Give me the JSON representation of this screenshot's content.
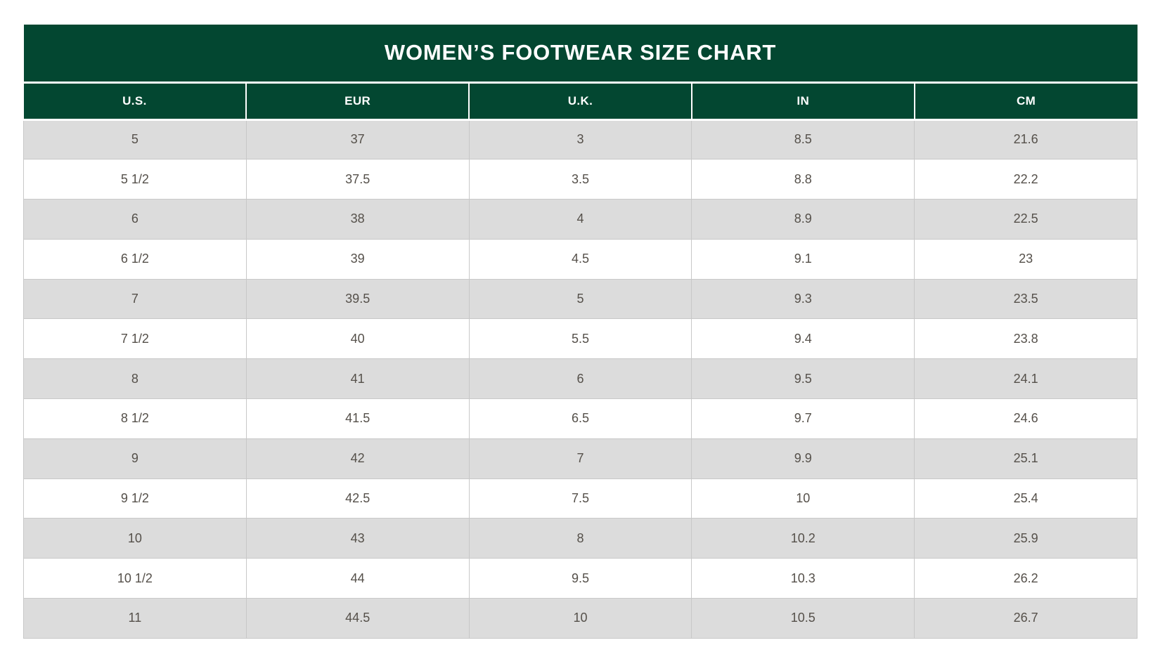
{
  "chart_data": {
    "type": "table",
    "title": "WOMEN’S FOOTWEAR SIZE CHART",
    "columns": [
      "U.S.",
      "EUR",
      "U.K.",
      "IN",
      "CM"
    ],
    "rows": [
      [
        "5",
        "37",
        "3",
        "8.5",
        "21.6"
      ],
      [
        "5 1/2",
        "37.5",
        "3.5",
        "8.8",
        "22.2"
      ],
      [
        "6",
        "38",
        "4",
        "8.9",
        "22.5"
      ],
      [
        "6 1/2",
        "39",
        "4.5",
        "9.1",
        "23"
      ],
      [
        "7",
        "39.5",
        "5",
        "9.3",
        "23.5"
      ],
      [
        "7 1/2",
        "40",
        "5.5",
        "9.4",
        "23.8"
      ],
      [
        "8",
        "41",
        "6",
        "9.5",
        "24.1"
      ],
      [
        "8 1/2",
        "41.5",
        "6.5",
        "9.7",
        "24.6"
      ],
      [
        "9",
        "42",
        "7",
        "9.9",
        "25.1"
      ],
      [
        "9 1/2",
        "42.5",
        "7.5",
        "10",
        "25.4"
      ],
      [
        "10",
        "43",
        "8",
        "10.2",
        "25.9"
      ],
      [
        "10 1/2",
        "44",
        "9.5",
        "10.3",
        "26.2"
      ],
      [
        "11",
        "44.5",
        "10",
        "10.5",
        "26.7"
      ]
    ],
    "layout": {
      "striped_rows": true,
      "first_data_row_shade": "gray"
    }
  },
  "colors": {
    "header_green": "#034731",
    "header_text": "#ffffff",
    "row_alt_gray": "#dcdcdc",
    "row_white": "#ffffff",
    "cell_text": "#55504a",
    "grid_line": "#c8c8c8"
  }
}
